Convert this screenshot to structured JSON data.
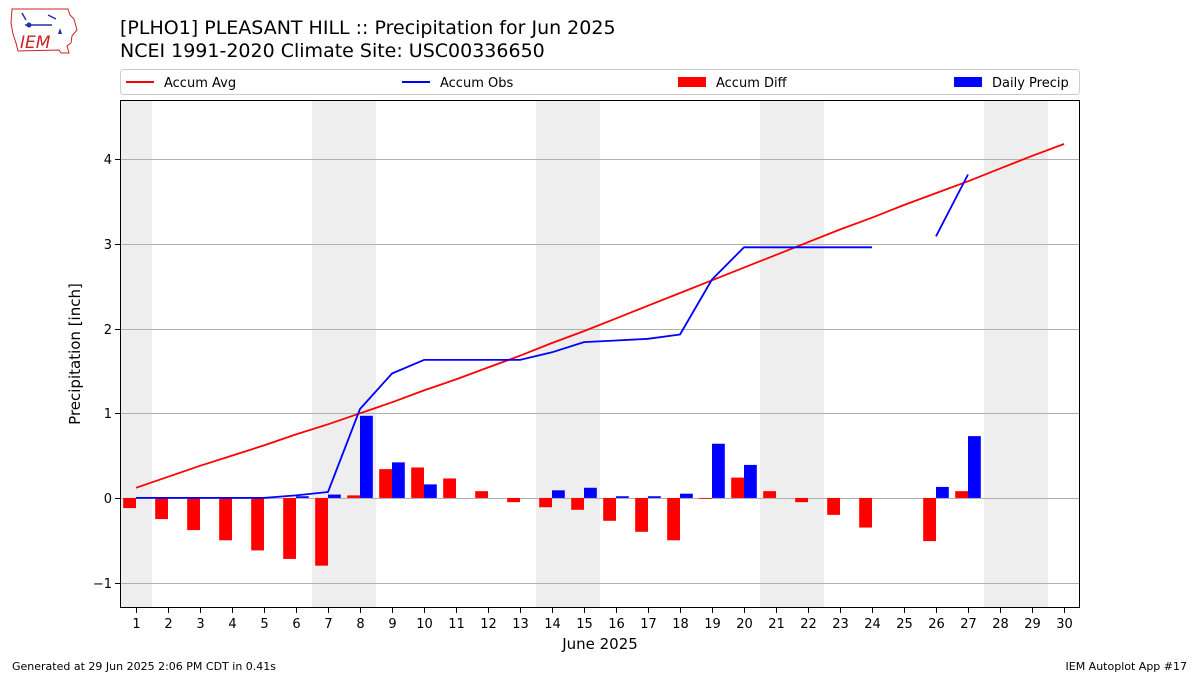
{
  "header": {
    "title_line1": "[PLHO1] PLEASANT HILL :: Precipitation for Jun 2025",
    "title_line2": "NCEI 1991-2020 Climate Site: USC00336650",
    "logo_text": "IEM"
  },
  "footer": {
    "left": "Generated at 29 Jun 2025 2:06 PM CDT in 0.41s",
    "right": "IEM Autoplot App #17"
  },
  "colors": {
    "accum_avg": "#ff0000",
    "accum_obs": "#0000ff",
    "accum_diff": "#ff0000",
    "daily_precip": "#0000ff",
    "weekend_shade": "#eeeeee",
    "grid": "#b0b0b0"
  },
  "chart_data": {
    "type": "bar",
    "xlabel": "June 2025",
    "ylabel": "Precipitation [inch]",
    "xlim": [
      0.5,
      30.5
    ],
    "ylim": [
      -1.3,
      4.7
    ],
    "yticks": [
      -1,
      0,
      1,
      2,
      3,
      4
    ],
    "ytick_labels": [
      "−1",
      "0",
      "1",
      "2",
      "3",
      "4"
    ],
    "days": [
      1,
      2,
      3,
      4,
      5,
      6,
      7,
      8,
      9,
      10,
      11,
      12,
      13,
      14,
      15,
      16,
      17,
      18,
      19,
      20,
      21,
      22,
      23,
      24,
      25,
      26,
      27,
      28,
      29,
      30
    ],
    "grid": true,
    "legend_position": "top",
    "weekend_days": [
      1,
      7,
      8,
      14,
      15,
      21,
      22,
      28,
      29
    ],
    "legend": [
      "Accum Avg",
      "Accum Obs",
      "Accum Diff",
      "Daily Precip"
    ],
    "series": [
      {
        "name": "Accum Avg",
        "kind": "line",
        "values": [
          0.12,
          0.25,
          0.38,
          0.5,
          0.62,
          0.75,
          0.87,
          1.0,
          1.13,
          1.27,
          1.4,
          1.54,
          1.68,
          1.83,
          1.97,
          2.12,
          2.27,
          2.42,
          2.57,
          2.72,
          2.87,
          3.02,
          3.17,
          3.31,
          3.46,
          3.6,
          3.74,
          3.89,
          4.04,
          4.18
        ]
      },
      {
        "name": "Accum Obs",
        "kind": "line",
        "values": [
          0.0,
          0.0,
          0.0,
          0.0,
          0.0,
          0.03,
          0.07,
          1.05,
          1.47,
          1.63,
          1.63,
          1.63,
          1.63,
          1.72,
          1.84,
          1.86,
          1.88,
          1.93,
          2.58,
          2.96,
          2.96,
          2.96,
          2.96,
          2.96,
          null,
          3.09,
          3.82,
          null,
          null,
          null
        ]
      },
      {
        "name": "Accum Diff",
        "kind": "bar",
        "values": [
          -0.12,
          -0.25,
          -0.38,
          -0.5,
          -0.62,
          -0.72,
          -0.8,
          0.03,
          0.34,
          0.36,
          0.23,
          0.08,
          -0.05,
          -0.11,
          -0.14,
          -0.27,
          -0.4,
          -0.5,
          -0.01,
          0.24,
          0.08,
          -0.05,
          -0.2,
          -0.35,
          null,
          -0.51,
          0.08,
          null,
          null,
          null
        ]
      },
      {
        "name": "Daily Precip",
        "kind": "bar",
        "values": [
          0.0,
          0.0,
          0.0,
          0.0,
          0.0,
          0.02,
          0.04,
          0.97,
          0.42,
          0.16,
          0.0,
          0.0,
          0.0,
          0.09,
          0.12,
          0.02,
          0.02,
          0.05,
          0.64,
          0.39,
          0.0,
          0.0,
          0.0,
          0.0,
          null,
          0.13,
          0.73,
          null,
          null,
          null
        ]
      }
    ]
  }
}
